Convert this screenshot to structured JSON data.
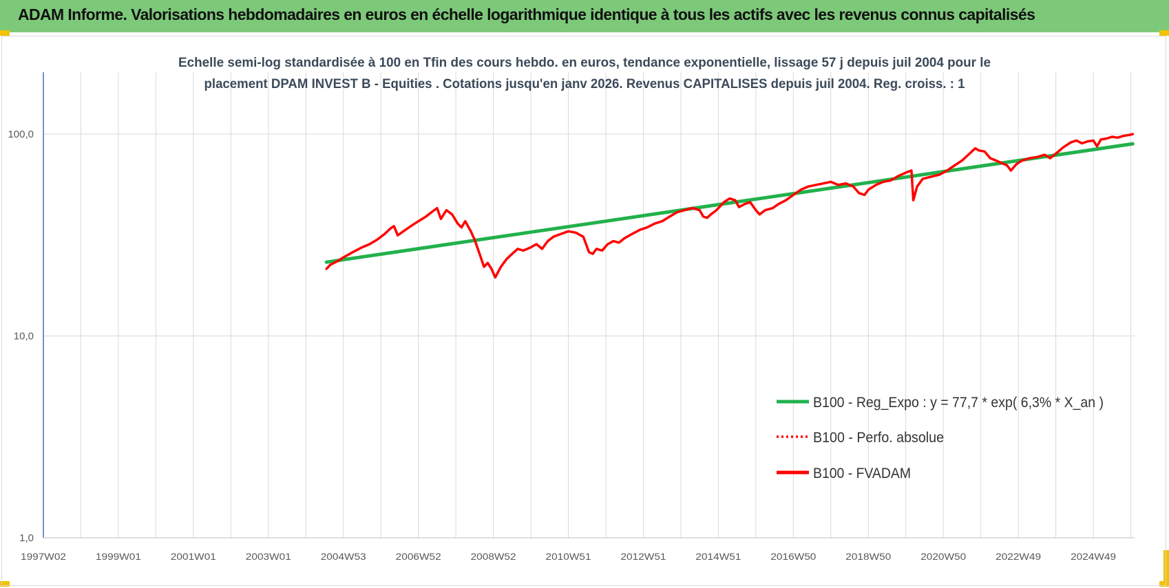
{
  "banner": {
    "title": "ADAM Informe. Valorisations hebdomadaires en euros en échelle logarithmique identique à tous les actifs avec les revenus connus capitalisés"
  },
  "colors": {
    "banner_bg": "#7dc97a",
    "corner_marks": "#f2c200",
    "trend_line": "#22b14c",
    "price_line": "#ff0000",
    "grid": "#d9d9d9",
    "y_axis_line": "#4472c4"
  },
  "chart_data": {
    "type": "line",
    "title": [
      "Echelle semi-log standardisée à 100 en Tfin des cours hebdo. en euros, tendance exponentielle, lissage 57 j depuis juil 2004 pour le",
      "placement DPAM INVEST B - Equities . Cotations jusqu'en janv 2026. Revenus CAPITALISES depuis juil 2004. Reg. croiss. : 1"
    ],
    "xlabel": "",
    "ylabel": "",
    "y_scale": "log",
    "ylim": [
      1,
      100
    ],
    "y_ticks": [
      "100,0",
      "10,0",
      "1,0"
    ],
    "x_range_years": [
      1997.0,
      2026.1
    ],
    "x_ticks": [
      "1997W02",
      "1999W01",
      "2001W01",
      "2003W01",
      "2004W53",
      "2006W52",
      "2008W52",
      "2010W51",
      "2012W51",
      "2014W51",
      "2016W50",
      "2018W50",
      "2020W50",
      "2022W49",
      "2024W49"
    ],
    "x_tick_years": [
      1997.0,
      1999.0,
      2001.0,
      2003.0,
      2005.0,
      2007.0,
      2009.0,
      2011.0,
      2013.0,
      2015.0,
      2017.0,
      2019.0,
      2021.0,
      2023.0,
      2025.0
    ],
    "grid": true,
    "legend_placement": "lower-right",
    "legend": [
      {
        "label": "B100 - Reg_Expo : y = 77,7 * exp( 6,3% *  X_an )",
        "style": "solid",
        "color": "#22b14c"
      },
      {
        "label": "B100 - Perfo. absolue",
        "style": "dotted",
        "color": "#ff0000"
      },
      {
        "label": "B100 - FVADAM",
        "style": "solid",
        "color": "#ff0000"
      }
    ],
    "series": [
      {
        "name": "B100 - Reg_Expo : y = 77,7 * exp( 6,3% *  X_an )",
        "color": "#22b14c",
        "x": [
          2004.55,
          2026.05
        ],
        "y": [
          23.2,
          89.5
        ]
      },
      {
        "name": "B100 - FVADAM",
        "color": "#ff0000",
        "x": [
          2004.55,
          2004.65,
          2004.85,
          2005.0,
          2005.25,
          2005.5,
          2005.7,
          2005.9,
          2006.1,
          2006.25,
          2006.35,
          2006.45,
          2006.6,
          2006.8,
          2007.0,
          2007.2,
          2007.35,
          2007.5,
          2007.6,
          2007.75,
          2007.9,
          2008.05,
          2008.15,
          2008.25,
          2008.4,
          2008.5,
          2008.65,
          2008.75,
          2008.85,
          2008.95,
          2009.05,
          2009.2,
          2009.35,
          2009.5,
          2009.65,
          2009.8,
          2010.0,
          2010.15,
          2010.3,
          2010.45,
          2010.6,
          2010.8,
          2011.0,
          2011.2,
          2011.4,
          2011.55,
          2011.65,
          2011.75,
          2011.9,
          2012.05,
          2012.2,
          2012.35,
          2012.5,
          2012.7,
          2012.9,
          2013.1,
          2013.3,
          2013.5,
          2013.7,
          2013.9,
          2014.1,
          2014.3,
          2014.5,
          2014.6,
          2014.7,
          2014.8,
          2014.95,
          2015.15,
          2015.3,
          2015.45,
          2015.55,
          2015.7,
          2015.85,
          2016.0,
          2016.1,
          2016.25,
          2016.45,
          2016.6,
          2016.8,
          2017.0,
          2017.2,
          2017.4,
          2017.6,
          2017.8,
          2018.0,
          2018.2,
          2018.4,
          2018.6,
          2018.75,
          2018.9,
          2019.0,
          2019.2,
          2019.4,
          2019.6,
          2019.8,
          2020.05,
          2020.15,
          2020.2,
          2020.3,
          2020.45,
          2020.6,
          2020.75,
          2020.9,
          2021.1,
          2021.3,
          2021.5,
          2021.7,
          2021.85,
          2021.95,
          2022.1,
          2022.25,
          2022.4,
          2022.55,
          2022.7,
          2022.8,
          2022.95,
          2023.1,
          2023.3,
          2023.5,
          2023.7,
          2023.85,
          2024.0,
          2024.2,
          2024.4,
          2024.55,
          2024.7,
          2024.85,
          2025.0,
          2025.1,
          2025.2,
          2025.35,
          2025.5,
          2025.65,
          2025.8,
          2025.95,
          2026.05
        ],
        "y": [
          21.5,
          22.5,
          23.5,
          24.5,
          26.0,
          27.5,
          28.5,
          30.0,
          32.0,
          34.0,
          35.0,
          31.5,
          33.0,
          35.0,
          37.0,
          39.0,
          41.0,
          43.0,
          38.0,
          42.0,
          40.0,
          36.0,
          34.5,
          37.0,
          33.0,
          30.0,
          25.0,
          22.0,
          23.0,
          21.5,
          19.5,
          22.0,
          24.0,
          25.5,
          27.0,
          26.5,
          27.5,
          28.5,
          27.0,
          29.5,
          31.0,
          32.0,
          33.0,
          32.5,
          31.0,
          26.0,
          25.5,
          27.0,
          26.5,
          28.5,
          29.5,
          29.0,
          30.5,
          32.0,
          33.5,
          34.5,
          36.0,
          37.0,
          39.0,
          41.0,
          42.0,
          43.0,
          42.0,
          39.0,
          38.5,
          40.0,
          42.0,
          46.0,
          48.0,
          47.0,
          43.5,
          45.0,
          46.0,
          42.0,
          40.0,
          42.0,
          43.0,
          45.0,
          47.0,
          50.0,
          53.0,
          55.0,
          56.0,
          57.0,
          58.0,
          56.0,
          57.0,
          55.0,
          51.0,
          50.0,
          53.0,
          56.0,
          58.0,
          59.0,
          62.0,
          65.0,
          66.0,
          47.0,
          55.0,
          60.0,
          61.0,
          62.0,
          63.0,
          66.0,
          70.0,
          74.0,
          80.0,
          85.0,
          83.0,
          82.0,
          76.0,
          74.0,
          72.0,
          70.0,
          66.0,
          71.0,
          74.0,
          76.0,
          77.0,
          79.0,
          76.0,
          80.0,
          86.0,
          91.0,
          93.0,
          90.0,
          92.0,
          93.0,
          87.0,
          94.0,
          95.0,
          97.0,
          96.0,
          98.0,
          99.0,
          100.0
        ]
      }
    ]
  }
}
